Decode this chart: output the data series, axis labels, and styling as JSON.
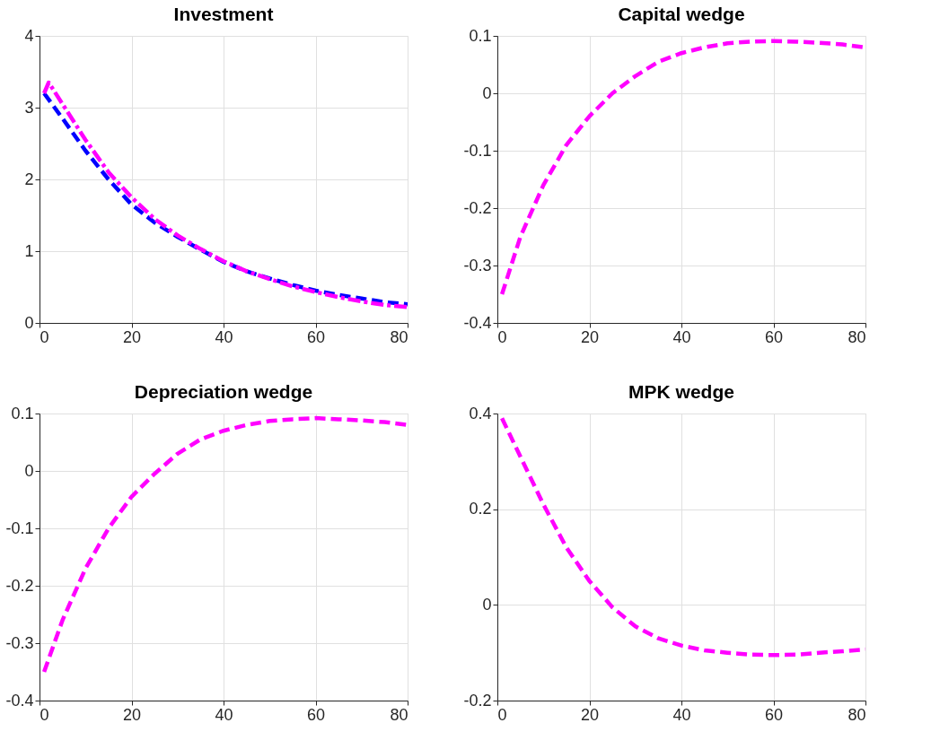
{
  "chart_data": [
    {
      "type": "line",
      "title": "Investment",
      "xlim": [
        0,
        80
      ],
      "xticks": [
        0,
        20,
        40,
        60,
        80
      ],
      "ylim": [
        0,
        4
      ],
      "yticks": [
        0,
        1,
        2,
        3,
        4
      ],
      "grid": true,
      "series": [
        {
          "color": "#0000ff",
          "line_style": "dashed",
          "x": [
            1,
            5,
            10,
            15,
            20,
            25,
            30,
            35,
            40,
            45,
            50,
            55,
            60,
            65,
            70,
            75,
            80
          ],
          "values": [
            3.2,
            2.85,
            2.4,
            2.0,
            1.65,
            1.4,
            1.2,
            1.02,
            0.85,
            0.72,
            0.62,
            0.53,
            0.45,
            0.39,
            0.34,
            0.29,
            0.26
          ]
        },
        {
          "color": "#ff00ff",
          "line_style": "dashed",
          "x": [
            1,
            2,
            5,
            10,
            15,
            20,
            25,
            30,
            35,
            40,
            45,
            50,
            55,
            60,
            65,
            70,
            75,
            80
          ],
          "values": [
            3.2,
            3.35,
            3.05,
            2.55,
            2.1,
            1.75,
            1.45,
            1.22,
            1.03,
            0.86,
            0.72,
            0.61,
            0.51,
            0.43,
            0.36,
            0.3,
            0.25,
            0.22
          ]
        }
      ]
    },
    {
      "type": "line",
      "title": "Capital wedge",
      "xlim": [
        0,
        80
      ],
      "xticks": [
        0,
        20,
        40,
        60,
        80
      ],
      "ylim": [
        -0.4,
        0.1
      ],
      "yticks": [
        -0.4,
        -0.3,
        -0.2,
        -0.1,
        0,
        0.1
      ],
      "grid": true,
      "series": [
        {
          "color": "#ff00ff",
          "line_style": "dashed",
          "x": [
            1,
            5,
            10,
            15,
            20,
            25,
            30,
            35,
            40,
            45,
            50,
            55,
            60,
            65,
            70,
            75,
            80
          ],
          "values": [
            -0.35,
            -0.25,
            -0.16,
            -0.09,
            -0.04,
            0.0,
            0.03,
            0.055,
            0.07,
            0.08,
            0.087,
            0.09,
            0.091,
            0.09,
            0.088,
            0.085,
            0.08
          ]
        }
      ]
    },
    {
      "type": "line",
      "title": "Depreciation wedge",
      "xlim": [
        0,
        80
      ],
      "xticks": [
        0,
        20,
        40,
        60,
        80
      ],
      "ylim": [
        -0.4,
        0.1
      ],
      "yticks": [
        -0.4,
        -0.3,
        -0.2,
        -0.1,
        0,
        0.1
      ],
      "grid": true,
      "series": [
        {
          "color": "#ff00ff",
          "line_style": "dashed",
          "x": [
            1,
            5,
            10,
            15,
            20,
            25,
            30,
            35,
            40,
            45,
            50,
            55,
            60,
            65,
            70,
            75,
            80
          ],
          "values": [
            -0.35,
            -0.26,
            -0.17,
            -0.1,
            -0.045,
            -0.005,
            0.03,
            0.055,
            0.07,
            0.08,
            0.087,
            0.09,
            0.092,
            0.09,
            0.088,
            0.085,
            0.08
          ]
        }
      ]
    },
    {
      "type": "line",
      "title": "MPK wedge",
      "xlim": [
        0,
        80
      ],
      "xticks": [
        0,
        20,
        40,
        60,
        80
      ],
      "ylim": [
        -0.2,
        0.4
      ],
      "yticks": [
        -0.2,
        0,
        0.2,
        0.4
      ],
      "grid": true,
      "series": [
        {
          "color": "#ff00ff",
          "line_style": "dashed",
          "x": [
            1,
            5,
            10,
            15,
            20,
            25,
            30,
            35,
            40,
            45,
            50,
            55,
            60,
            65,
            70,
            75,
            80
          ],
          "values": [
            0.39,
            0.31,
            0.21,
            0.12,
            0.05,
            -0.005,
            -0.045,
            -0.07,
            -0.085,
            -0.095,
            -0.1,
            -0.104,
            -0.105,
            -0.104,
            -0.1,
            -0.097,
            -0.093
          ]
        }
      ]
    }
  ]
}
